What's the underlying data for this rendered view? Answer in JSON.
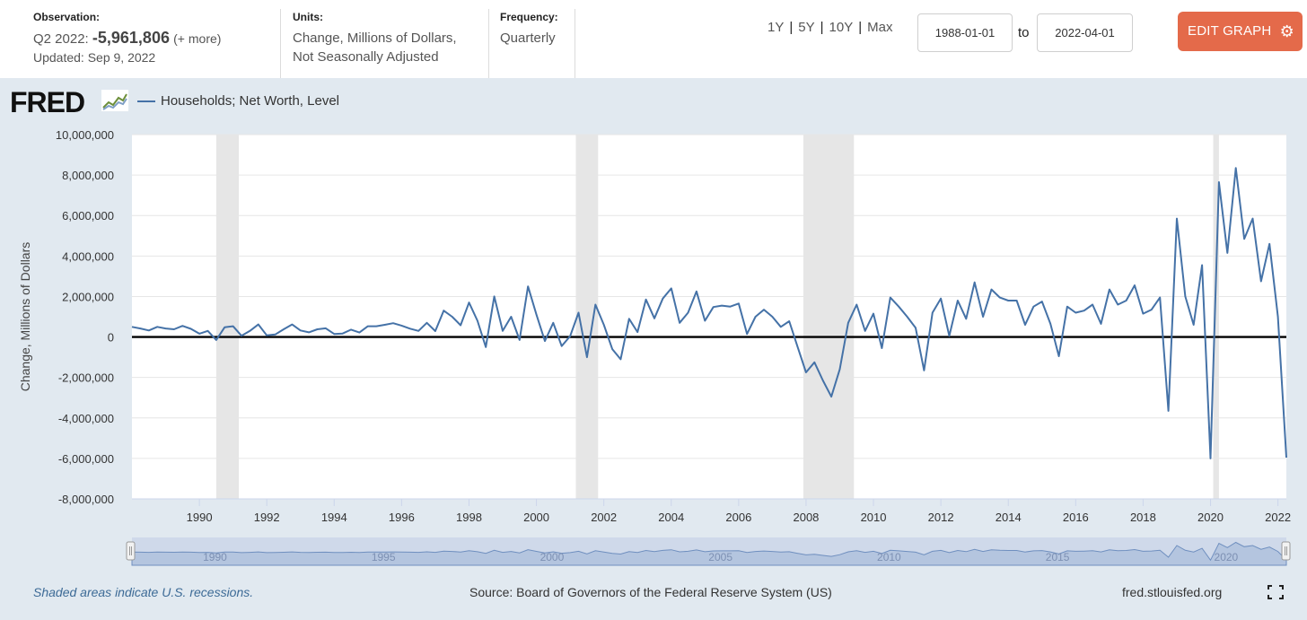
{
  "header": {
    "observation_label": "Observation:",
    "observation_period": "Q2 2022:",
    "observation_value": "-5,961,806",
    "observation_more": "(+ more)",
    "updated": "Updated: Sep 9, 2022",
    "units_label": "Units:",
    "units_line1": "Change, Millions of Dollars,",
    "units_line2": "Not Seasonally Adjusted",
    "frequency_label": "Frequency:",
    "frequency_value": "Quarterly",
    "range_1y": "1Y",
    "range_5y": "5Y",
    "range_10y": "10Y",
    "range_max": "Max",
    "range_sep": "|",
    "start_date": "1988-01-01",
    "to_label": "to",
    "end_date": "2022-04-01",
    "edit_label": "EDIT GRAPH",
    "edit_icon": "gear-icon"
  },
  "logo_text": "FRED",
  "logo_icon": "fred-sparkline-icon",
  "footer": {
    "recession_note": "Shaded areas indicate U.S. recessions.",
    "source": "Source: Board of Governors of the Federal Reserve System (US)",
    "site": "fred.stlouisfed.org",
    "fullscreen_icon": "expand-icon"
  },
  "colors": {
    "series": "#4572a7",
    "recession": "#e6e6e6",
    "edit_button": "#e46a4a",
    "background": "#e1e9f0",
    "navigator_fill": "#b4c5df"
  },
  "chart_data": {
    "type": "line",
    "ylabel": "Change, Millions of Dollars",
    "ylim": [
      -8000000,
      10000000
    ],
    "y_ticks": [
      -8000000,
      -6000000,
      -4000000,
      -2000000,
      0,
      2000000,
      4000000,
      6000000,
      8000000,
      10000000
    ],
    "y_tick_labels": [
      "-8,000,000",
      "-6,000,000",
      "-4,000,000",
      "-2,000,000",
      "0",
      "2,000,000",
      "4,000,000",
      "6,000,000",
      "8,000,000",
      "10,000,000"
    ],
    "xlim": [
      1988.0,
      2022.25
    ],
    "x_ticks": [
      1990,
      1992,
      1994,
      1996,
      1998,
      2000,
      2002,
      2004,
      2006,
      2008,
      2010,
      2012,
      2014,
      2016,
      2018,
      2020,
      2022
    ],
    "x_tick_labels": [
      "1990",
      "1992",
      "1994",
      "1996",
      "1998",
      "2000",
      "2002",
      "2004",
      "2006",
      "2008",
      "2010",
      "2012",
      "2014",
      "2016",
      "2018",
      "2020",
      "2022"
    ],
    "navigator_labels": [
      "1990",
      "1995",
      "2000",
      "2005",
      "2010",
      "2015",
      "2020"
    ],
    "navigator_years": [
      1990,
      1995,
      2000,
      2005,
      2010,
      2015,
      2020
    ],
    "grid": true,
    "zero_line": true,
    "recessions": [
      [
        1990.5,
        1991.17
      ],
      [
        2001.17,
        2001.83
      ],
      [
        2007.92,
        2009.42
      ],
      [
        2020.08,
        2020.25
      ]
    ],
    "series": [
      {
        "name": "Households; Net Worth, Level",
        "start_year": 1988,
        "frequency": "quarterly",
        "values": [
          500000,
          420000,
          320000,
          500000,
          420000,
          380000,
          550000,
          400000,
          160000,
          300000,
          -150000,
          480000,
          530000,
          60000,
          300000,
          620000,
          80000,
          120000,
          380000,
          620000,
          320000,
          230000,
          380000,
          430000,
          150000,
          170000,
          360000,
          220000,
          530000,
          530000,
          600000,
          680000,
          560000,
          410000,
          300000,
          700000,
          290000,
          1300000,
          1000000,
          580000,
          1700000,
          800000,
          -500000,
          2000000,
          300000,
          1000000,
          -150000,
          2500000,
          1100000,
          -200000,
          700000,
          -450000,
          40000,
          1200000,
          -1000000,
          1600000,
          600000,
          -600000,
          -1100000,
          900000,
          240000,
          1850000,
          920000,
          1900000,
          2400000,
          700000,
          1200000,
          2250000,
          800000,
          1480000,
          1550000,
          1500000,
          1650000,
          150000,
          1000000,
          1350000,
          1000000,
          500000,
          780000,
          -500000,
          -1750000,
          -1250000,
          -2150000,
          -2950000,
          -1600000,
          700000,
          1600000,
          300000,
          1150000,
          -550000,
          1950000,
          1500000,
          1000000,
          450000,
          -1650000,
          1200000,
          1900000,
          50000,
          1800000,
          900000,
          2700000,
          1000000,
          2350000,
          1950000,
          1800000,
          1800000,
          600000,
          1500000,
          1750000,
          650000,
          -950000,
          1500000,
          1200000,
          1300000,
          1600000,
          650000,
          2350000,
          1600000,
          1800000,
          2550000,
          1150000,
          1350000,
          1950000,
          -3650000,
          5850000,
          2000000,
          600000,
          3550000,
          -6000000,
          7650000,
          4150000,
          8350000,
          4850000,
          5850000,
          2750000,
          4600000,
          1000000,
          -5961806
        ]
      }
    ]
  }
}
